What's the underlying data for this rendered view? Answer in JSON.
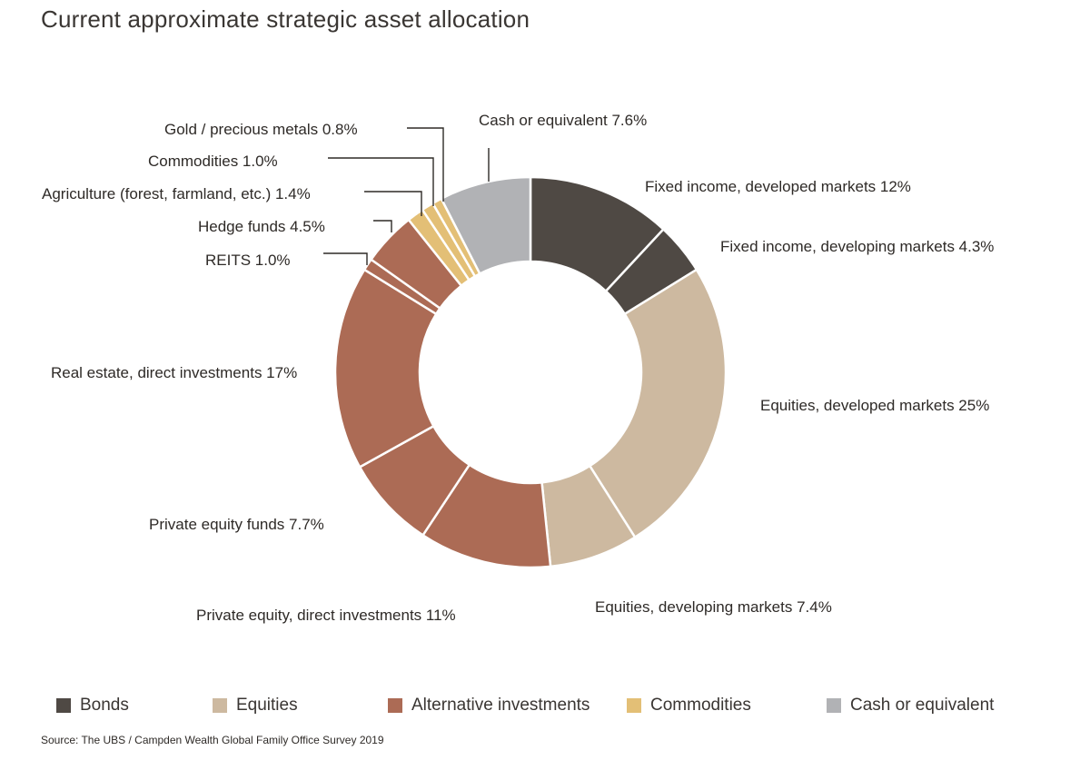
{
  "title": "Current approximate strategic asset allocation",
  "source": "Source: The UBS / Campden Wealth Global Family Office Survey 2019",
  "colors": {
    "Bonds": "#4f4944",
    "Equities": "#cdb9a0",
    "Alternative investments": "#ac6b55",
    "Commodities": "#e3bf76",
    "Cash or equivalent": "#b1b2b5"
  },
  "legend": [
    "Bonds",
    "Equities",
    "Alternative investments",
    "Commodities",
    "Cash or equivalent"
  ],
  "chart_data": {
    "type": "pie",
    "title": "Current approximate strategic asset allocation",
    "donut": true,
    "slices": [
      {
        "label": "Fixed income, developed markets 12%",
        "value": 12,
        "group": "Bonds"
      },
      {
        "label": "Fixed income, developing markets 4.3%",
        "value": 4.3,
        "group": "Bonds"
      },
      {
        "label": "Equities, developed markets 25%",
        "value": 25,
        "group": "Equities"
      },
      {
        "label": "Equities, developing markets 7.4%",
        "value": 7.4,
        "group": "Equities"
      },
      {
        "label": "Private equity, direct investments 11%",
        "value": 11,
        "group": "Alternative investments"
      },
      {
        "label": "Private equity funds 7.7%",
        "value": 7.7,
        "group": "Alternative investments"
      },
      {
        "label": "Real estate, direct investments 17%",
        "value": 17,
        "group": "Alternative investments"
      },
      {
        "label": "REITS 1.0%",
        "value": 1.0,
        "group": "Alternative investments"
      },
      {
        "label": "Hedge funds 4.5%",
        "value": 4.5,
        "group": "Alternative investments"
      },
      {
        "label": "Agriculture (forest, farmland, etc.) 1.4%",
        "value": 1.4,
        "group": "Commodities"
      },
      {
        "label": "Commodities 1.0%",
        "value": 1.0,
        "group": "Commodities"
      },
      {
        "label": "Gold / precious metals 0.8%",
        "value": 0.8,
        "group": "Commodities"
      },
      {
        "label": "Cash or equivalent 7.6%",
        "value": 7.6,
        "group": "Cash or equivalent"
      }
    ],
    "legend_position": "bottom"
  }
}
